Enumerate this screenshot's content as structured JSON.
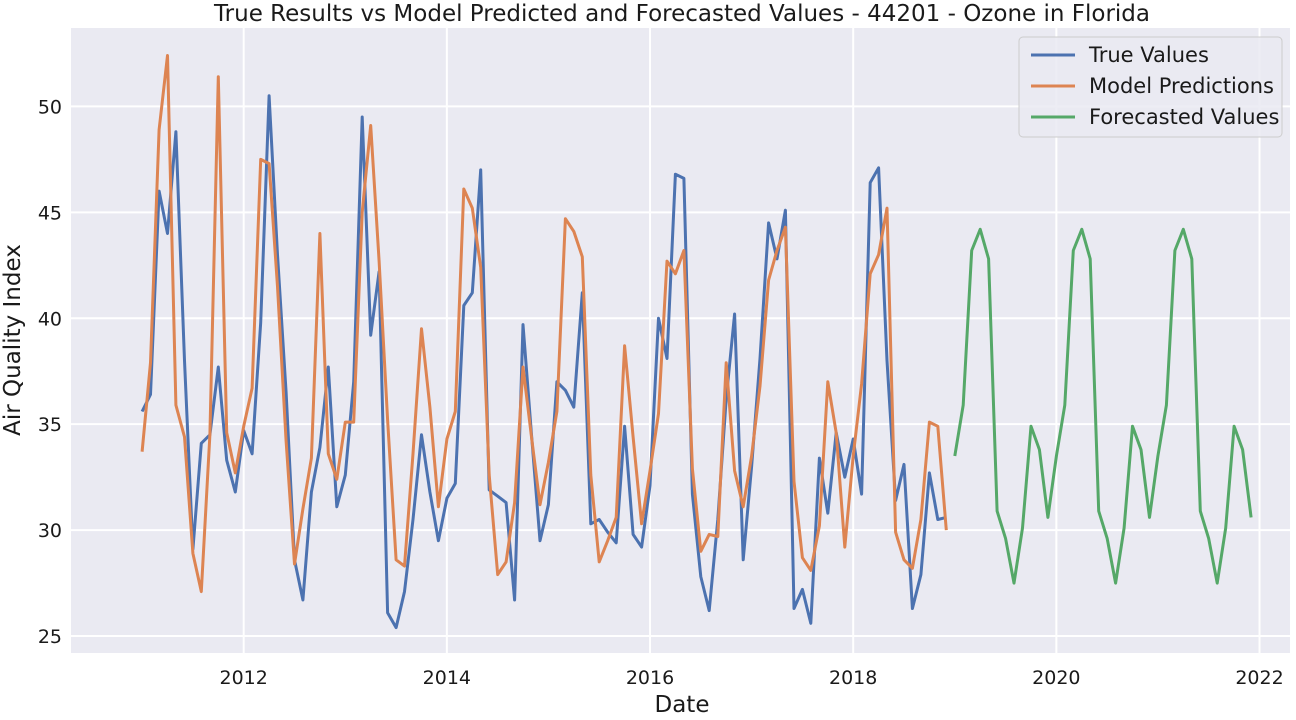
{
  "chart_data": {
    "type": "line",
    "title": "True Results vs Model Predicted and Forecasted Values - 44201 - Ozone in Florida",
    "xlabel": "Date",
    "ylabel": "Air Quality Index",
    "xlim": [
      2010.3,
      2022.3
    ],
    "ylim": [
      24.2,
      53.7
    ],
    "x_ticks": [
      2012,
      2014,
      2016,
      2018,
      2020,
      2022
    ],
    "y_ticks": [
      25,
      30,
      35,
      40,
      45,
      50
    ],
    "grid": true,
    "legend_position": "top-right",
    "background": "#EAEAF2",
    "series": [
      {
        "name": "True Values",
        "color": "#4C72B0",
        "x": [
          2011.0,
          2011.083,
          2011.167,
          2011.25,
          2011.333,
          2011.417,
          2011.5,
          2011.583,
          2011.667,
          2011.75,
          2011.833,
          2011.917,
          2012.0,
          2012.083,
          2012.167,
          2012.25,
          2012.333,
          2012.417,
          2012.5,
          2012.583,
          2012.667,
          2012.75,
          2012.833,
          2012.917,
          2013.0,
          2013.083,
          2013.167,
          2013.25,
          2013.333,
          2013.417,
          2013.5,
          2013.583,
          2013.667,
          2013.75,
          2013.833,
          2013.917,
          2014.0,
          2014.083,
          2014.167,
          2014.25,
          2014.333,
          2014.417,
          2014.5,
          2014.583,
          2014.667,
          2014.75,
          2014.833,
          2014.917,
          2015.0,
          2015.083,
          2015.167,
          2015.25,
          2015.333,
          2015.417,
          2015.5,
          2015.583,
          2015.667,
          2015.75,
          2015.833,
          2015.917,
          2016.0,
          2016.083,
          2016.167,
          2016.25,
          2016.333,
          2016.417,
          2016.5,
          2016.583,
          2016.667,
          2016.75,
          2016.833,
          2016.917,
          2017.0,
          2017.083,
          2017.167,
          2017.25,
          2017.333,
          2017.417,
          2017.5,
          2017.583,
          2017.667,
          2017.75,
          2017.833,
          2017.917,
          2018.0,
          2018.083,
          2018.167,
          2018.25,
          2018.333,
          2018.417,
          2018.5,
          2018.583,
          2018.667,
          2018.75,
          2018.833,
          2018.917
        ],
        "y": [
          35.6,
          36.4,
          46.0,
          44.0,
          48.8,
          38.0,
          29.1,
          34.1,
          34.5,
          37.7,
          33.3,
          31.8,
          34.7,
          33.6,
          39.8,
          50.5,
          43.0,
          36.5,
          28.6,
          26.7,
          31.8,
          33.9,
          37.7,
          31.1,
          32.6,
          37.0,
          49.5,
          39.2,
          42.2,
          26.1,
          25.4,
          27.1,
          30.5,
          34.5,
          31.8,
          29.5,
          31.5,
          32.2,
          40.6,
          41.2,
          47.0,
          31.9,
          31.6,
          31.3,
          26.7,
          39.7,
          34.5,
          29.5,
          31.2,
          37.0,
          36.6,
          35.8,
          41.2,
          30.3,
          30.5,
          29.9,
          29.4,
          34.9,
          29.8,
          29.2,
          32.1,
          40.0,
          38.1,
          46.8,
          46.6,
          31.7,
          27.8,
          26.2,
          30.5,
          36.2,
          40.2,
          28.6,
          33.0,
          38.1,
          44.5,
          42.8,
          45.1,
          26.3,
          27.2,
          25.6,
          33.4,
          30.8,
          34.6,
          32.5,
          34.3,
          31.7,
          46.4,
          47.1,
          38.0,
          31.4,
          33.1,
          26.3,
          27.9,
          32.7,
          30.5,
          30.6
        ]
      },
      {
        "name": "Model Predictions",
        "color": "#DD8452",
        "x": [
          2011.0,
          2011.083,
          2011.167,
          2011.25,
          2011.333,
          2011.417,
          2011.5,
          2011.583,
          2011.667,
          2011.75,
          2011.833,
          2011.917,
          2012.0,
          2012.083,
          2012.167,
          2012.25,
          2012.333,
          2012.417,
          2012.5,
          2012.583,
          2012.667,
          2012.75,
          2012.833,
          2012.917,
          2013.0,
          2013.083,
          2013.167,
          2013.25,
          2013.333,
          2013.417,
          2013.5,
          2013.583,
          2013.667,
          2013.75,
          2013.833,
          2013.917,
          2014.0,
          2014.083,
          2014.167,
          2014.25,
          2014.333,
          2014.417,
          2014.5,
          2014.583,
          2014.667,
          2014.75,
          2014.833,
          2014.917,
          2015.0,
          2015.083,
          2015.167,
          2015.25,
          2015.333,
          2015.417,
          2015.5,
          2015.583,
          2015.667,
          2015.75,
          2015.833,
          2015.917,
          2016.0,
          2016.083,
          2016.167,
          2016.25,
          2016.333,
          2016.417,
          2016.5,
          2016.583,
          2016.667,
          2016.75,
          2016.833,
          2016.917,
          2017.0,
          2017.083,
          2017.167,
          2017.25,
          2017.333,
          2017.417,
          2017.5,
          2017.583,
          2017.667,
          2017.75,
          2017.833,
          2017.917,
          2018.0,
          2018.083,
          2018.167,
          2018.25,
          2018.333,
          2018.417,
          2018.5,
          2018.583,
          2018.667,
          2018.75,
          2018.833,
          2018.917
        ],
        "y": [
          33.7,
          37.9,
          48.9,
          52.4,
          35.9,
          34.4,
          28.9,
          27.1,
          34.5,
          51.4,
          34.6,
          32.7,
          34.9,
          36.7,
          47.5,
          47.3,
          41.5,
          34.2,
          28.4,
          31.0,
          33.4,
          44.0,
          33.6,
          32.4,
          35.1,
          35.1,
          45.0,
          49.1,
          42.7,
          35.2,
          28.6,
          28.3,
          33.6,
          39.5,
          35.8,
          31.1,
          34.3,
          35.6,
          46.1,
          45.2,
          42.4,
          32.6,
          27.9,
          28.5,
          31.3,
          37.7,
          34.4,
          31.2,
          33.2,
          35.6,
          44.7,
          44.1,
          42.9,
          32.6,
          28.5,
          29.5,
          30.6,
          38.7,
          34.4,
          30.3,
          32.8,
          35.5,
          42.7,
          42.1,
          43.2,
          32.9,
          29.0,
          29.8,
          29.7,
          37.9,
          32.8,
          31.1,
          33.5,
          36.8,
          41.8,
          43.2,
          44.3,
          32.3,
          28.7,
          28.1,
          30.2,
          37.0,
          34.6,
          29.2,
          33.5,
          36.9,
          42.1,
          43.0,
          45.2,
          29.9,
          28.6,
          28.2,
          30.5,
          35.1,
          34.9,
          30.0
        ]
      },
      {
        "name": "Forecasted Values",
        "color": "#55A868",
        "x": [
          2019.0,
          2019.083,
          2019.167,
          2019.25,
          2019.333,
          2019.417,
          2019.5,
          2019.583,
          2019.667,
          2019.75,
          2019.833,
          2019.917,
          2020.0,
          2020.083,
          2020.167,
          2020.25,
          2020.333,
          2020.417,
          2020.5,
          2020.583,
          2020.667,
          2020.75,
          2020.833,
          2020.917,
          2021.0,
          2021.083,
          2021.167,
          2021.25,
          2021.333,
          2021.417,
          2021.5,
          2021.583,
          2021.667,
          2021.75,
          2021.833,
          2021.917
        ],
        "y": [
          33.5,
          35.9,
          43.2,
          44.2,
          42.8,
          30.9,
          29.6,
          27.5,
          30.1,
          34.9,
          33.8,
          30.6,
          33.5,
          35.9,
          43.2,
          44.2,
          42.8,
          30.9,
          29.6,
          27.5,
          30.1,
          34.9,
          33.8,
          30.6,
          33.5,
          35.9,
          43.2,
          44.2,
          42.8,
          30.9,
          29.6,
          27.5,
          30.1,
          34.9,
          33.8,
          30.6
        ]
      }
    ]
  }
}
